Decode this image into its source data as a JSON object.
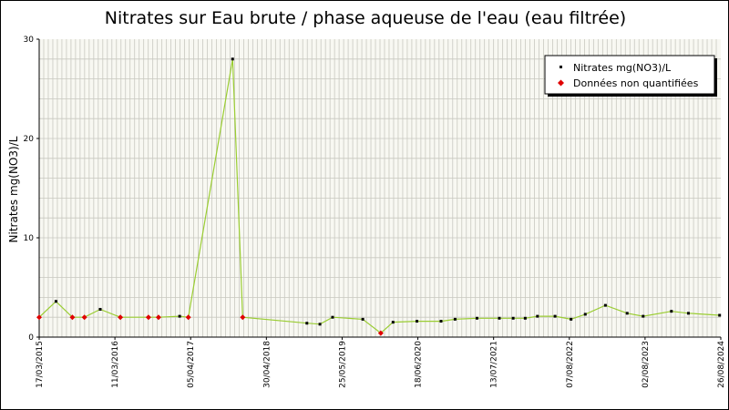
{
  "chart_data": {
    "type": "line",
    "title": "Nitrates sur Eau brute / phase aqueuse de l'eau (eau filtrée)",
    "ylabel": "Nitrates mg(NO3)/L",
    "xlabel": "",
    "ylim": [
      0,
      30
    ],
    "yticks": [
      "0",
      "10",
      "20",
      "30"
    ],
    "xtick_labels": [
      "17/03/2015",
      "11/03/2016",
      "05/04/2017",
      "30/04/2018",
      "25/05/2019",
      "18/06/2020",
      "13/07/2021",
      "07/08/2022",
      "02/08/2023",
      "26/08/2024"
    ],
    "x_range": [
      "2015-03-17",
      "2024-08-26"
    ],
    "grid": true,
    "legend_position": "top-right",
    "colors": {
      "line": "#9ACD32",
      "quantified": "#000000",
      "non_quantified": "#E00000",
      "plot_bg": "#F8F8F2",
      "grid": "#C8C8C0"
    },
    "series": [
      {
        "name": "Nitrates mg(NO3)/L",
        "marker": "quantified",
        "points": [
          {
            "x": "2015-06-10",
            "y": 3.6
          },
          {
            "x": "2016-01-20",
            "y": 2.8
          },
          {
            "x": "2017-02-25",
            "y": 2.1
          },
          {
            "x": "2017-11-20",
            "y": 28.0
          },
          {
            "x": "2018-12-01",
            "y": 1.4
          },
          {
            "x": "2019-02-05",
            "y": 1.3
          },
          {
            "x": "2019-04-10",
            "y": 2.0
          },
          {
            "x": "2019-09-10",
            "y": 1.8
          },
          {
            "x": "2020-02-10",
            "y": 1.5
          },
          {
            "x": "2020-06-10",
            "y": 1.6
          },
          {
            "x": "2020-10-10",
            "y": 1.6
          },
          {
            "x": "2020-12-20",
            "y": 1.8
          },
          {
            "x": "2021-04-10",
            "y": 1.9
          },
          {
            "x": "2021-08-01",
            "y": 1.9
          },
          {
            "x": "2021-10-10",
            "y": 1.9
          },
          {
            "x": "2021-12-10",
            "y": 1.9
          },
          {
            "x": "2022-02-10",
            "y": 2.1
          },
          {
            "x": "2022-05-10",
            "y": 2.1
          },
          {
            "x": "2022-07-30",
            "y": 1.8
          },
          {
            "x": "2022-10-10",
            "y": 2.3
          },
          {
            "x": "2023-01-20",
            "y": 3.2
          },
          {
            "x": "2023-05-10",
            "y": 2.4
          },
          {
            "x": "2023-07-30",
            "y": 2.1
          },
          {
            "x": "2023-12-20",
            "y": 2.6
          },
          {
            "x": "2024-03-15",
            "y": 2.4
          },
          {
            "x": "2024-08-20",
            "y": 2.2
          }
        ]
      },
      {
        "name": "Données non quantifiées",
        "marker": "non_quantified",
        "points": [
          {
            "x": "2015-03-17",
            "y": 2.0
          },
          {
            "x": "2015-09-01",
            "y": 2.0
          },
          {
            "x": "2015-11-01",
            "y": 2.0
          },
          {
            "x": "2016-05-01",
            "y": 2.0
          },
          {
            "x": "2016-09-20",
            "y": 2.0
          },
          {
            "x": "2016-11-10",
            "y": 2.0
          },
          {
            "x": "2017-04-10",
            "y": 2.0
          },
          {
            "x": "2018-01-10",
            "y": 2.0
          },
          {
            "x": "2019-12-10",
            "y": 0.4
          }
        ]
      }
    ]
  }
}
